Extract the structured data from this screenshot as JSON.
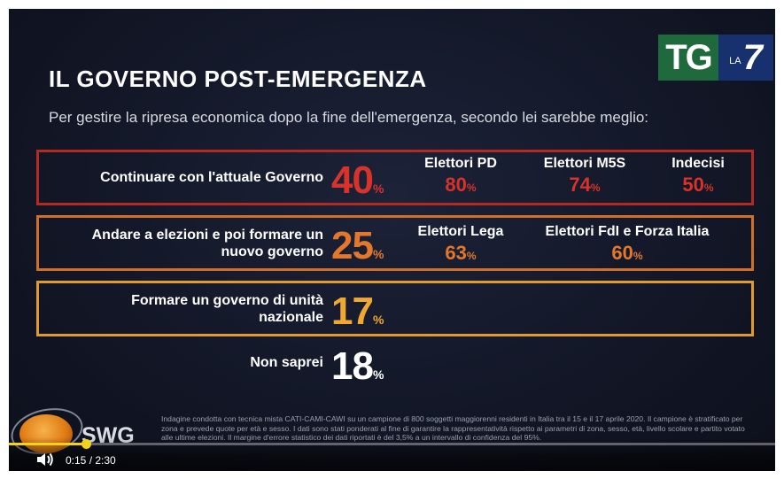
{
  "slide": {
    "title": "IL GOVERNO POST-EMERGENZA",
    "subtitle": "Per gestire la ripresa economica dopo la fine dell'emergenza, secondo lei sarebbe meglio:"
  },
  "logo": {
    "tg": "TG",
    "la": "LA",
    "seven": "7"
  },
  "options": [
    {
      "label": "Continuare con l'attuale Governo",
      "value": "40",
      "pct": "%",
      "breakdown": [
        {
          "group": "Elettori PD",
          "value": "80",
          "pct": "%"
        },
        {
          "group": "Elettori M5S",
          "value": "74",
          "pct": "%"
        },
        {
          "group": "Indecisi",
          "value": "50",
          "pct": "%"
        }
      ]
    },
    {
      "label_line1": "Andare a elezioni e poi formare un",
      "label_line2": "nuovo governo",
      "value": "25",
      "pct": "%",
      "breakdown": [
        {
          "group": "Elettori Lega",
          "value": "63",
          "pct": "%"
        },
        {
          "group": "Elettori FdI e Forza Italia",
          "value": "60",
          "pct": "%"
        }
      ]
    },
    {
      "label_line1": "Formare un governo di unità",
      "label_line2": "nazionale",
      "value": "17",
      "pct": "%"
    },
    {
      "label": "Non saprei",
      "value": "18",
      "pct": "%"
    }
  ],
  "colors": {
    "red": "#d8332a",
    "orange": "#e3782d",
    "amber": "#f0a733",
    "progress": "#f2d21a"
  },
  "source": {
    "brand": "SWG",
    "note": "Indagine condotta con tecnica mista CATI-CAMI-CAWI su un campione di 800 soggetti maggiorenni residenti in Italia tra il 15 e il 17 aprile 2020. Il campione è stratificato per zona e prevede quote per età e sesso. I dati sono stati ponderati al fine di garantire la rappresentatività rispetto ai parametri di zona, sesso, età, livello scolare e partito votato alle ultime elezioni. Il margine d'errore statistico dei dati riportati è del 3,5% a un intervallo di confidenza del 95%."
  },
  "player": {
    "time": "0:15 / 2:30",
    "progress_fraction": 0.1,
    "volume_icon": "volume-icon"
  }
}
